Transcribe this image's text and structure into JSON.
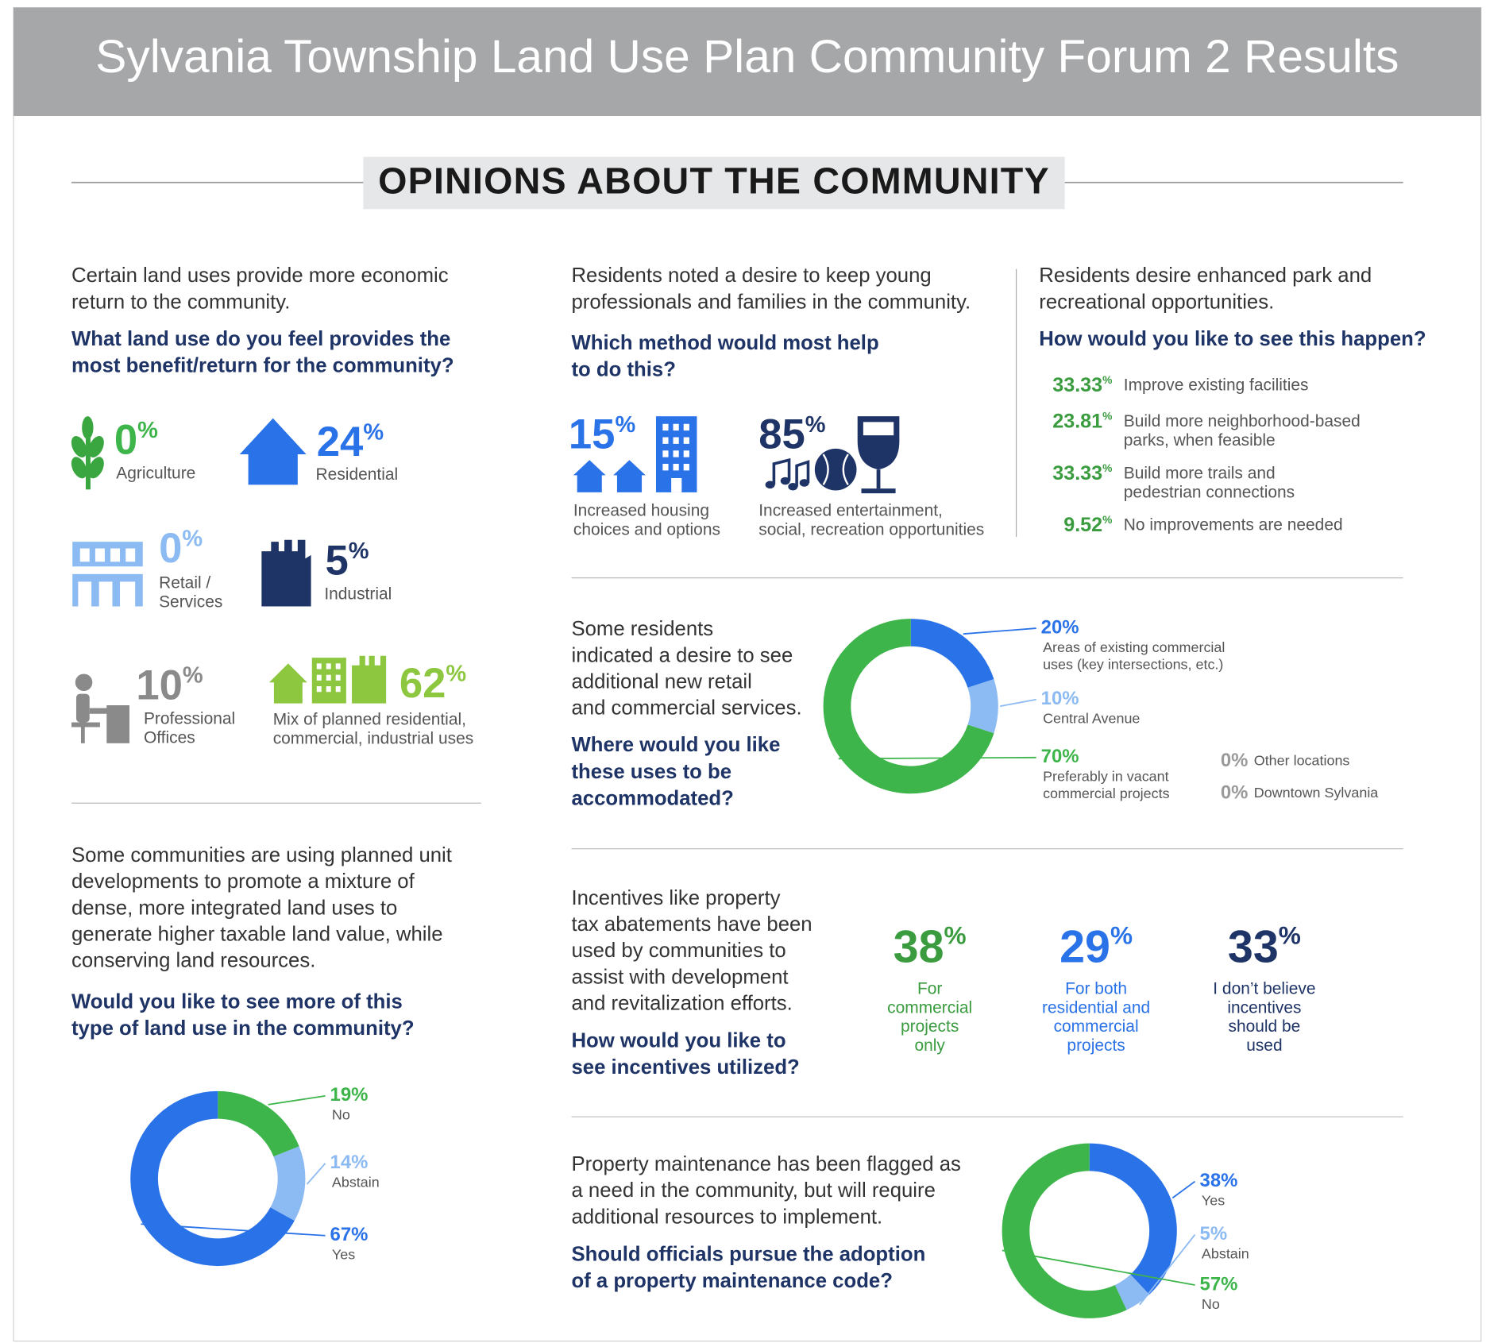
{
  "header": {
    "title": "Sylvania Township Land Use Plan Community Forum 2 Results"
  },
  "section_title": "OPINIONS ABOUT THE COMMUNITY",
  "land_use": {
    "intro": [
      "Certain land uses provide more economic",
      "return to the community."
    ],
    "question": [
      "What land use do you feel provides the",
      "most benefit/return for the community?"
    ],
    "items": [
      {
        "value": "0",
        "unit": "%",
        "label": [
          "Agriculture"
        ]
      },
      {
        "value": "24",
        "unit": "%",
        "label": [
          "Residential"
        ]
      },
      {
        "value": "0",
        "unit": "%",
        "label": [
          "Retail /",
          "Services"
        ]
      },
      {
        "value": "5",
        "unit": "%",
        "label": [
          "Industrial"
        ]
      },
      {
        "value": "10",
        "unit": "%",
        "label": [
          "Professional",
          "Offices"
        ]
      },
      {
        "value": "62",
        "unit": "%",
        "label": [
          "Mix of planned residential,",
          "commercial, industrial uses"
        ]
      }
    ]
  },
  "young": {
    "intro": [
      "Residents noted a desire to keep young",
      "professionals and families in the community."
    ],
    "question": [
      "Which method would most help",
      "to do this?"
    ],
    "items": [
      {
        "value": "15",
        "unit": "%",
        "label": [
          "Increased housing",
          "choices and options"
        ]
      },
      {
        "value": "85",
        "unit": "%",
        "label": [
          "Increased entertainment,",
          "social, recreation opportunities"
        ]
      }
    ]
  },
  "parks": {
    "intro": [
      "Residents desire enhanced park and",
      "recreational opportunities."
    ],
    "question": [
      "How would you like to see this happen?"
    ],
    "items": [
      {
        "value": "33.33",
        "unit": "%",
        "label": [
          "Improve existing facilities"
        ]
      },
      {
        "value": "23.81",
        "unit": "%",
        "label": [
          "Build more neighborhood-based",
          "parks, when feasible"
        ]
      },
      {
        "value": "33.33",
        "unit": "%",
        "label": [
          "Build more trails and",
          "pedestrian connections"
        ]
      },
      {
        "value": "9.52",
        "unit": "%",
        "label": [
          "No improvements are needed"
        ]
      }
    ]
  },
  "pud": {
    "intro": [
      "Some communities are using planned unit",
      "developments to promote a mixture of",
      "dense, more integrated land uses to",
      "generate higher taxable land value, while",
      "conserving land resources."
    ],
    "question": [
      "Would you like to see more of this",
      "type of land use in the community?"
    ],
    "chart": {
      "type": "donut",
      "categories": [
        [
          "No"
        ],
        [
          "Abstain"
        ],
        [
          "Yes"
        ]
      ],
      "values": [
        19,
        14,
        67
      ],
      "value_labels": [
        "19%",
        "14%",
        "67%"
      ],
      "colors": [
        "#3db54a",
        "#8cbaf2",
        "#2a72e8"
      ]
    }
  },
  "commercial": {
    "intro": [
      "Some residents",
      "indicated a desire to see",
      "additional new retail",
      "and commercial services."
    ],
    "question": [
      "Where would you like",
      "these uses to be",
      "accommodated?"
    ],
    "chart": {
      "type": "donut",
      "categories": [
        [
          "Areas of existing commercial",
          "uses (key intersections, etc.)"
        ],
        [
          "Central Avenue"
        ],
        [
          "Preferably in vacant",
          "commercial projects"
        ],
        [
          "Other locations"
        ],
        [
          "Downtown Sylvania"
        ]
      ],
      "values": [
        20,
        10,
        70,
        0,
        0
      ],
      "value_labels": [
        "20%",
        "10%",
        "70%",
        "0%",
        "0%"
      ],
      "colors": [
        "#2a72e8",
        "#8cbaf2",
        "#3db54a",
        "#9a9a9a",
        "#9a9a9a"
      ]
    }
  },
  "incentives": {
    "intro": [
      "Incentives like property",
      "tax abatements have been",
      "used by communities to",
      "assist with development",
      "and revitalization efforts."
    ],
    "question": [
      "How would you like to",
      "see incentives utilized?"
    ],
    "items": [
      {
        "value": "38",
        "unit": "%",
        "label": [
          "For",
          "commercial",
          "projects",
          "only"
        ]
      },
      {
        "value": "29",
        "unit": "%",
        "label": [
          "For both",
          "residential and",
          "commercial",
          "projects"
        ]
      },
      {
        "value": "33",
        "unit": "%",
        "label": [
          "I don’t believe",
          "incentives",
          "should be",
          "used"
        ]
      }
    ]
  },
  "maintenance": {
    "intro": [
      "Property maintenance has been flagged as",
      "a need in the community, but will require",
      "additional resources to implement."
    ],
    "question": [
      "Should officials pursue the adoption",
      "of a property maintenance code?"
    ],
    "chart": {
      "type": "donut",
      "categories": [
        [
          "Yes"
        ],
        [
          "Abstain"
        ],
        [
          "No"
        ]
      ],
      "values": [
        38,
        5,
        57
      ],
      "value_labels": [
        "38%",
        "5%",
        "57%"
      ],
      "colors": [
        "#2a72e8",
        "#8cbaf2",
        "#3db54a"
      ]
    }
  }
}
